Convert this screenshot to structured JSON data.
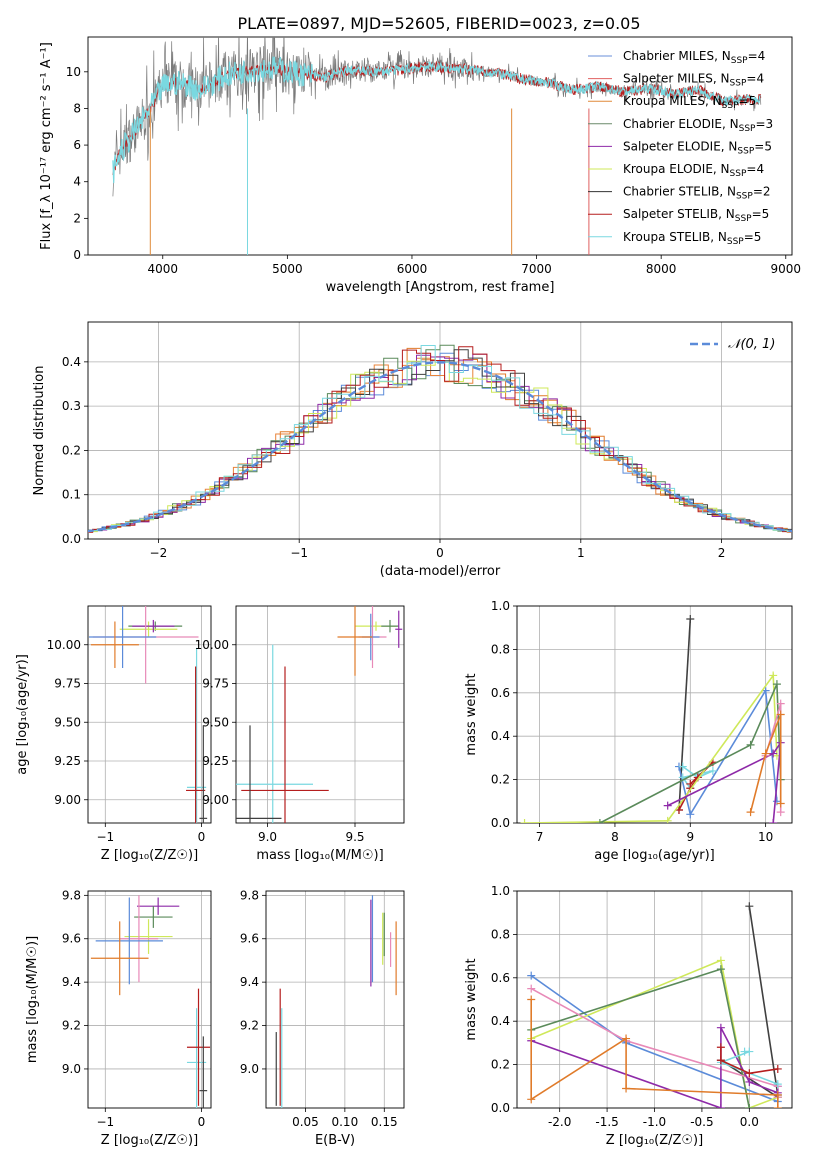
{
  "title": "PLATE=0897, MJD=52605, FIBERID=0023, z=0.05",
  "model_colors": [
    "#5b8bd9",
    "#e8833a",
    "#e07b2a",
    "#5a8a5a",
    "#8e2aa8",
    "#cfe85a",
    "#404040",
    "#b51e1e",
    "#7ad8e0"
  ],
  "chart_data": [
    {
      "type": "line",
      "id": "spectrum",
      "xlabel": "wavelength [Angstrom, rest frame]",
      "ylabel": "Flux [f_λ 10⁻¹⁷ erg cm⁻² s⁻¹ A⁻¹]",
      "xlim": [
        3400,
        9050
      ],
      "ylim": [
        0,
        11.9
      ],
      "xticks": [
        4000,
        5000,
        6000,
        7000,
        8000,
        9000
      ],
      "yticks": [
        0,
        2,
        4,
        6,
        8,
        10
      ],
      "legend_position": "right",
      "legend": [
        "Chabrier MILES, N_SSP=4",
        "Salpeter MILES, N_SSP=4",
        "Kroupa MILES, N_SSP=5",
        "Chabrier ELODIE, N_SSP=3",
        "Salpeter ELODIE, N_SSP=5",
        "Kroupa ELODIE, N_SSP=4",
        "Chabrier STELIB, N_SSP=2",
        "Salpeter STELIB, N_SSP=5",
        "Kroupa STELIB, N_SSP=5"
      ],
      "legend_colors": [
        "#6a8fd8",
        "#e06060",
        "#e08a3a",
        "#6a8a6a",
        "#8e2aa8",
        "#cfe85a",
        "#333333",
        "#b51e1e",
        "#7ad8e0"
      ],
      "continuum": {
        "x": [
          3600,
          3650,
          3700,
          3800,
          3900,
          4000,
          4100,
          4200,
          4300,
          4400,
          4500,
          4700,
          4900,
          5100,
          5300,
          5500,
          5700,
          5900,
          6100,
          6300,
          6500,
          6700,
          6900,
          7100,
          7300,
          7500,
          7700,
          7900,
          8100,
          8300,
          8500,
          8700,
          8800
        ],
        "y": [
          4.5,
          5.5,
          6.0,
          7.0,
          8.0,
          9.2,
          9.4,
          9.3,
          9.0,
          9.4,
          9.8,
          10.1,
          10.2,
          9.9,
          9.7,
          10.1,
          10.0,
          10.1,
          10.3,
          10.2,
          10.1,
          9.9,
          9.6,
          9.4,
          9.0,
          9.2,
          8.9,
          9.1,
          8.8,
          9.0,
          8.4,
          8.5,
          8.5
        ]
      }
    },
    {
      "type": "line",
      "id": "residuals",
      "xlabel": "(data-model)/error",
      "ylabel": "Normed distribution",
      "xlim": [
        -2.5,
        2.5
      ],
      "ylim": [
        0,
        0.49
      ],
      "xticks": [
        -2,
        -1,
        0,
        1,
        2
      ],
      "yticks": [
        0.0,
        0.1,
        0.2,
        0.3,
        0.4
      ],
      "legend": [
        "𝒩(0, 1)"
      ],
      "legend_position": "top-right",
      "gaussian_color": "#5b8bd9"
    },
    {
      "type": "scatter",
      "id": "age_vs_Z",
      "xlabel": "Z [log₁₀(Z/Z☉)]",
      "ylabel": "age  [log₁₀(age/yr)]",
      "xlim": [
        -1.18,
        0.1
      ],
      "ylim": [
        8.85,
        10.25
      ],
      "xticks": [
        -1,
        0
      ],
      "yticks": [
        9.0,
        9.25,
        9.5,
        9.75,
        10.0
      ],
      "points": [
        {
          "x": -0.48,
          "y": 10.12,
          "xerr": 0.28,
          "yerr": 0.03,
          "color": "#5a8a5a"
        },
        {
          "x": -0.55,
          "y": 10.1,
          "xerr": 0.3,
          "yerr": 0.05,
          "color": "#cfe85a"
        },
        {
          "x": -0.5,
          "y": 10.12,
          "xerr": 0.22,
          "yerr": 0.04,
          "color": "#8e2aa8"
        },
        {
          "x": -0.58,
          "y": 10.05,
          "xerr": 0.55,
          "yerr": 0.3,
          "color": "#e88ab8"
        },
        {
          "x": -0.82,
          "y": 10.05,
          "xerr": 0.35,
          "yerr": 0.2,
          "color": "#5b8bd9"
        },
        {
          "x": -0.9,
          "y": 10.0,
          "xerr": 0.25,
          "yerr": 0.15,
          "color": "#e07b2a"
        },
        {
          "x": -0.05,
          "y": 9.08,
          "xerr": 0.1,
          "yerr": 0.9,
          "color": "#7ad8e0"
        },
        {
          "x": -0.06,
          "y": 9.06,
          "xerr": 0.1,
          "yerr": 0.8,
          "color": "#b51e1e"
        },
        {
          "x": 0.02,
          "y": 8.88,
          "xerr": 0.04,
          "yerr": 0.6,
          "color": "#404040"
        }
      ]
    },
    {
      "type": "scatter",
      "id": "age_vs_mass",
      "xlabel": "mass [log₁₀(M/M☉)]",
      "ylabel": "",
      "xlim": [
        8.82,
        9.78
      ],
      "ylim": [
        8.85,
        10.25
      ],
      "xticks": [
        9.0,
        9.5
      ],
      "yticks": [
        9.0,
        9.25,
        9.5,
        9.75,
        10.0
      ],
      "points": [
        {
          "x": 9.62,
          "y": 10.12,
          "xerr": 0.12,
          "yerr": 0.03,
          "color": "#cfe85a"
        },
        {
          "x": 9.7,
          "y": 10.12,
          "xerr": 0.05,
          "yerr": 0.04,
          "color": "#5a8a5a"
        },
        {
          "x": 9.75,
          "y": 10.1,
          "xerr": 0.02,
          "yerr": 0.12,
          "color": "#8e2aa8"
        },
        {
          "x": 9.6,
          "y": 10.05,
          "xerr": 0.08,
          "yerr": 0.2,
          "color": "#e88ab8"
        },
        {
          "x": 9.59,
          "y": 10.05,
          "xerr": 0.05,
          "yerr": 0.15,
          "color": "#5b8bd9"
        },
        {
          "x": 9.5,
          "y": 10.05,
          "xerr": 0.1,
          "yerr": 0.25,
          "color": "#e07b2a"
        },
        {
          "x": 9.03,
          "y": 9.1,
          "xerr": 0.23,
          "yerr": 0.9,
          "color": "#7ad8e0"
        },
        {
          "x": 9.1,
          "y": 9.06,
          "xerr": 0.25,
          "yerr": 0.8,
          "color": "#b51e1e"
        },
        {
          "x": 8.9,
          "y": 8.88,
          "xerr": 0.18,
          "yerr": 0.6,
          "color": "#404040"
        }
      ]
    },
    {
      "type": "line",
      "id": "massweight_vs_age",
      "xlabel": "age  [log₁₀(age/yr)]",
      "ylabel": "mass weight",
      "xlim": [
        6.7,
        10.35
      ],
      "ylim": [
        0,
        1.0
      ],
      "xticks": [
        7,
        8,
        9,
        10
      ],
      "yticks": [
        0.0,
        0.2,
        0.4,
        0.6,
        0.8,
        1.0
      ],
      "series": [
        {
          "color": "#404040",
          "x": [
            8.85,
            9.0
          ],
          "y": [
            0.06,
            0.94
          ]
        },
        {
          "color": "#5b8bd9",
          "x": [
            8.85,
            9.0,
            10.0,
            10.15
          ],
          "y": [
            0.26,
            0.04,
            0.61,
            0.1
          ]
        },
        {
          "color": "#7ad8e0",
          "x": [
            8.9,
            9.1,
            9.3,
            8.9,
            9.0
          ],
          "y": [
            0.26,
            0.21,
            0.24,
            0.21,
            0.16
          ]
        },
        {
          "color": "#b51e1e",
          "x": [
            8.85,
            9.0,
            9.1,
            9.3,
            9.0
          ],
          "y": [
            0.06,
            0.16,
            0.21,
            0.28,
            0.18
          ]
        },
        {
          "color": "#cfe85a",
          "x": [
            6.8,
            8.7,
            10.1,
            10.15
          ],
          "y": [
            0.0,
            0.01,
            0.68,
            0.31
          ]
        },
        {
          "color": "#5a8a5a",
          "x": [
            7.8,
            9.8,
            10.15,
            10.2
          ],
          "y": [
            0.0,
            0.36,
            0.64,
            0.2
          ]
        },
        {
          "color": "#8e2aa8",
          "x": [
            8.7,
            10.1,
            10.2,
            10.1
          ],
          "y": [
            0.08,
            0.32,
            0.37,
            0.0
          ]
        },
        {
          "color": "#e88ab8",
          "x": [
            10.0,
            10.2,
            10.2
          ],
          "y": [
            0.31,
            0.55,
            0.05
          ]
        },
        {
          "color": "#e07b2a",
          "x": [
            9.8,
            10.0,
            10.2,
            10.2
          ],
          "y": [
            0.05,
            0.32,
            0.5,
            0.09
          ]
        }
      ]
    },
    {
      "type": "scatter",
      "id": "mass_vs_Z",
      "xlabel": "Z [log₁₀(Z/Z☉)]",
      "ylabel": "mass [log₁₀(M/M☉)]",
      "xlim": [
        -1.18,
        0.1
      ],
      "ylim": [
        8.82,
        9.82
      ],
      "xticks": [
        -1,
        0
      ],
      "yticks": [
        9.0,
        9.2,
        9.4,
        9.6,
        9.8
      ],
      "points": [
        {
          "x": -0.45,
          "y": 9.75,
          "xerr": 0.22,
          "yerr": 0.04,
          "color": "#8e2aa8"
        },
        {
          "x": -0.5,
          "y": 9.7,
          "xerr": 0.2,
          "yerr": 0.05,
          "color": "#5a8a5a"
        },
        {
          "x": -0.55,
          "y": 9.61,
          "xerr": 0.25,
          "yerr": 0.08,
          "color": "#cfe85a"
        },
        {
          "x": -0.65,
          "y": 9.6,
          "xerr": 0.2,
          "yerr": 0.2,
          "color": "#e88ab8"
        },
        {
          "x": -0.75,
          "y": 9.59,
          "xerr": 0.35,
          "yerr": 0.2,
          "color": "#5b8bd9"
        },
        {
          "x": -0.85,
          "y": 9.51,
          "xerr": 0.3,
          "yerr": 0.17,
          "color": "#e07b2a"
        },
        {
          "x": -0.05,
          "y": 9.03,
          "xerr": 0.1,
          "yerr": 0.25,
          "color": "#7ad8e0"
        },
        {
          "x": -0.03,
          "y": 9.1,
          "xerr": 0.12,
          "yerr": 0.27,
          "color": "#b51e1e"
        },
        {
          "x": 0.02,
          "y": 8.9,
          "xerr": 0.04,
          "yerr": 0.25,
          "color": "#404040"
        }
      ]
    },
    {
      "type": "scatter",
      "id": "mass_vs_EBV",
      "xlabel": "E(B-V)",
      "ylabel": "",
      "xlim": [
        0.0,
        0.175
      ],
      "ylim": [
        8.82,
        9.82
      ],
      "xticks": [
        0.05,
        0.1,
        0.15
      ],
      "yticks": [
        9.0,
        9.2,
        9.4,
        9.6,
        9.8
      ],
      "points": [
        {
          "x": 0.013,
          "y": 9.0,
          "xerr": 0.0,
          "yerr": 0.17,
          "color": "#404040"
        },
        {
          "x": 0.018,
          "y": 9.1,
          "xerr": 0.0,
          "yerr": 0.27,
          "color": "#b51e1e"
        },
        {
          "x": 0.02,
          "y": 9.03,
          "xerr": 0.0,
          "yerr": 0.25,
          "color": "#7ad8e0"
        },
        {
          "x": 0.133,
          "y": 9.58,
          "xerr": 0.0,
          "yerr": 0.2,
          "color": "#8e2aa8"
        },
        {
          "x": 0.135,
          "y": 9.6,
          "xerr": 0.0,
          "yerr": 0.2,
          "color": "#5b8bd9"
        },
        {
          "x": 0.148,
          "y": 9.6,
          "xerr": 0.0,
          "yerr": 0.12,
          "color": "#cfe85a"
        },
        {
          "x": 0.15,
          "y": 9.62,
          "xerr": 0.0,
          "yerr": 0.1,
          "color": "#5a8a5a"
        },
        {
          "x": 0.158,
          "y": 9.55,
          "xerr": 0.0,
          "yerr": 0.08,
          "color": "#e88ab8"
        },
        {
          "x": 0.165,
          "y": 9.51,
          "xerr": 0.0,
          "yerr": 0.17,
          "color": "#e07b2a"
        }
      ]
    },
    {
      "type": "line",
      "id": "massweight_vs_Z",
      "xlabel": "Z [log₁₀(Z/Z☉)]",
      "ylabel": "mass weight",
      "xlim": [
        -2.45,
        0.45
      ],
      "ylim": [
        0,
        1.0
      ],
      "xticks": [
        -2.0,
        -1.5,
        -1.0,
        -0.5,
        0.0
      ],
      "yticks": [
        0.0,
        0.2,
        0.4,
        0.6,
        0.8,
        1.0
      ],
      "series": [
        {
          "color": "#404040",
          "x": [
            0.0,
            0.3,
            0.3,
            -0.3
          ],
          "y": [
            0.93,
            0.06,
            0.05,
            0.22
          ]
        },
        {
          "color": "#5b8bd9",
          "x": [
            -2.3,
            -1.3,
            0.3,
            0.3
          ],
          "y": [
            0.61,
            0.3,
            0.03,
            0.1
          ]
        },
        {
          "color": "#cfe85a",
          "x": [
            -2.3,
            -0.3,
            0.0,
            0.3
          ],
          "y": [
            0.32,
            0.68,
            0.0,
            0.05
          ]
        },
        {
          "color": "#5a8a5a",
          "x": [
            -2.3,
            -0.3,
            0.0
          ],
          "y": [
            0.36,
            0.64,
            0.0
          ]
        },
        {
          "color": "#e88ab8",
          "x": [
            -2.3,
            -1.3,
            0.3,
            0.3
          ],
          "y": [
            0.55,
            0.31,
            0.1,
            0.05
          ]
        },
        {
          "color": "#8e2aa8",
          "x": [
            -2.3,
            -0.3,
            -0.3,
            0.0,
            0.3
          ],
          "y": [
            0.31,
            0.0,
            0.37,
            0.12,
            0.07
          ]
        },
        {
          "color": "#e07b2a",
          "x": [
            -2.3,
            -2.3,
            -1.3,
            -1.3,
            0.3,
            0.3
          ],
          "y": [
            0.5,
            0.04,
            0.32,
            0.09,
            0.06,
            0.0
          ]
        },
        {
          "color": "#7ad8e0",
          "x": [
            -0.05,
            0.0,
            -0.3,
            0.3
          ],
          "y": [
            0.26,
            0.26,
            0.21,
            0.11
          ]
        },
        {
          "color": "#b51e1e",
          "x": [
            -0.3,
            -0.3,
            0.0,
            0.3
          ],
          "y": [
            0.28,
            0.22,
            0.16,
            0.18
          ]
        }
      ]
    }
  ]
}
